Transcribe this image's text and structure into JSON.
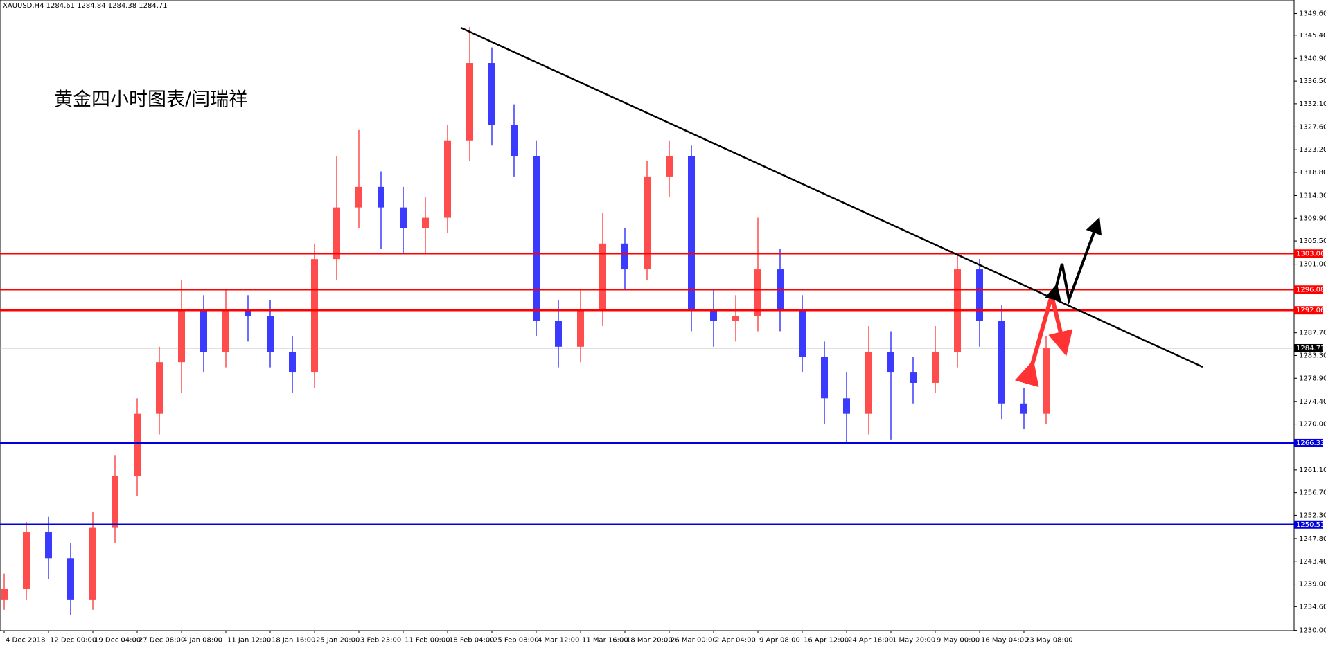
{
  "header": {
    "symbol": "XAUUSD,H4",
    "ohlc": [
      1284.61,
      1284.84,
      1284.38,
      1284.71
    ]
  },
  "annotation": "黄金四小时图表/闫瑞祥",
  "chart_data": {
    "type": "candlestick",
    "up_color": "#ff4d4d",
    "down_color": "#3b3bff",
    "open": [
      1236,
      1238,
      1249,
      1244,
      1236,
      1250,
      1260,
      1272,
      1282,
      1292,
      1284,
      1292,
      1291,
      1284,
      1280,
      1302,
      1312,
      1316,
      1312,
      1308,
      1310,
      1325,
      1340,
      1328,
      1322,
      1290,
      1285,
      1292,
      1305,
      1300,
      1318,
      1322,
      1292,
      1290,
      1291,
      1300,
      1292,
      1283,
      1275,
      1272,
      1284,
      1280,
      1278,
      1284,
      1300,
      1290,
      1274,
      1272
    ],
    "high": [
      1241,
      1251,
      1252,
      1247,
      1253,
      1264,
      1275,
      1285,
      1298,
      1295,
      1296,
      1295,
      1294,
      1287,
      1305,
      1322,
      1327,
      1319,
      1316,
      1314,
      1328,
      1347,
      1343,
      1332,
      1325,
      1294,
      1296,
      1311,
      1308,
      1321,
      1325,
      1324,
      1296,
      1295,
      1310,
      1304,
      1295,
      1286,
      1280,
      1289,
      1288,
      1283,
      1289,
      1303,
      1302,
      1293,
      1277,
      1287
    ],
    "low": [
      1234,
      1236,
      1240,
      1233,
      1234,
      1247,
      1256,
      1268,
      1276,
      1280,
      1281,
      1286,
      1281,
      1276,
      1277,
      1298,
      1308,
      1304,
      1303,
      1303,
      1307,
      1321,
      1324,
      1318,
      1287,
      1281,
      1282,
      1289,
      1296,
      1298,
      1314,
      1288,
      1285,
      1286,
      1288,
      1288,
      1280,
      1270,
      1266.3,
      1268,
      1267,
      1274,
      1276,
      1281,
      1285,
      1271,
      1269,
      1270
    ],
    "close": [
      1238,
      1249,
      1244,
      1236,
      1250,
      1260,
      1272,
      1282,
      1292,
      1284,
      1292,
      1291,
      1284,
      1280,
      1302,
      1312,
      1316,
      1312,
      1308,
      1310,
      1325,
      1340,
      1328,
      1322,
      1290,
      1285,
      1292,
      1305,
      1300,
      1318,
      1322,
      1292,
      1290,
      1291,
      1300,
      1292,
      1283,
      1275,
      1272,
      1284,
      1280,
      1278,
      1284,
      1300,
      1290,
      1274,
      1272,
      1284.71
    ],
    "ylim": [
      1230,
      1349.6
    ],
    "yticks": [
      {
        "value": 1349.6,
        "label": "1349.60"
      },
      {
        "value": 1345.4,
        "label": "1345.40"
      },
      {
        "value": 1340.9,
        "label": "1340.90"
      },
      {
        "value": 1336.5,
        "label": "1336.50"
      },
      {
        "value": 1332.1,
        "label": "1332.10"
      },
      {
        "value": 1327.6,
        "label": "1327.60"
      },
      {
        "value": 1323.2,
        "label": "1323.20"
      },
      {
        "value": 1318.8,
        "label": "1318.80"
      },
      {
        "value": 1314.3,
        "label": "1314.30"
      },
      {
        "value": 1309.9,
        "label": "1309.90"
      },
      {
        "value": 1305.5,
        "label": "1305.50"
      },
      {
        "value": 1301,
        "label": "1301.00"
      },
      {
        "value": 1287.7,
        "label": "1287.70"
      },
      {
        "value": 1283.3,
        "label": "1283.30"
      },
      {
        "value": 1278.9,
        "label": "1278.90"
      },
      {
        "value": 1274.4,
        "label": "1274.40"
      },
      {
        "value": 1270,
        "label": "1270.00"
      },
      {
        "value": 1261.1,
        "label": "1261.10"
      },
      {
        "value": 1256.7,
        "label": "1256.70"
      },
      {
        "value": 1252.3,
        "label": "1252.30"
      },
      {
        "value": 1247.8,
        "label": "1247.80"
      },
      {
        "value": 1243.4,
        "label": "1243.40"
      },
      {
        "value": 1239,
        "label": "1239.00"
      },
      {
        "value": 1234.6,
        "label": "1234.60"
      },
      {
        "value": 1230,
        "label": "1230.00"
      }
    ],
    "xticks": [
      {
        "value": 0,
        "label": "4 Dec 2018"
      },
      {
        "value": 2,
        "label": "12 Dec 00:00"
      },
      {
        "value": 4,
        "label": "19 Dec 04:00"
      },
      {
        "value": 6,
        "label": "27 Dec 08:00"
      },
      {
        "value": 8,
        "label": "4 Jan 08:00"
      },
      {
        "value": 10,
        "label": "11 Jan 12:00"
      },
      {
        "value": 12,
        "label": "18 Jan 16:00"
      },
      {
        "value": 14,
        "label": "25 Jan 20:00"
      },
      {
        "value": 16,
        "label": "3 Feb 23:00"
      },
      {
        "value": 18,
        "label": "11 Feb 00:00"
      },
      {
        "value": 20,
        "label": "18 Feb 04:00"
      },
      {
        "value": 22,
        "label": "25 Feb 08:00"
      },
      {
        "value": 24,
        "label": "4 Mar 12:00"
      },
      {
        "value": 26,
        "label": "11 Mar 16:00"
      },
      {
        "value": 28,
        "label": "18 Mar 20:00"
      },
      {
        "value": 30,
        "label": "26 Mar 00:00"
      },
      {
        "value": 32,
        "label": "2 Apr 04:00"
      },
      {
        "value": 34,
        "label": "9 Apr 08:00"
      },
      {
        "value": 36,
        "label": "16 Apr 12:00"
      },
      {
        "value": 38,
        "label": "24 Apr 16:00"
      },
      {
        "value": 40,
        "label": "1 May 20:00"
      },
      {
        "value": 42,
        "label": "9 May 00:00"
      },
      {
        "value": 44,
        "label": "16 May 04:00"
      },
      {
        "value": 46,
        "label": "23 May 08:00"
      }
    ],
    "levels": [
      {
        "value": 1303.06,
        "color": "#ff0000"
      },
      {
        "value": 1296.08,
        "color": "#ff0000"
      },
      {
        "value": 1292.06,
        "color": "#ff0000"
      },
      {
        "value": 1266.33,
        "color": "#0000dd"
      },
      {
        "value": 1250.51,
        "color": "#0000dd"
      }
    ],
    "bid": 1284.71
  }
}
